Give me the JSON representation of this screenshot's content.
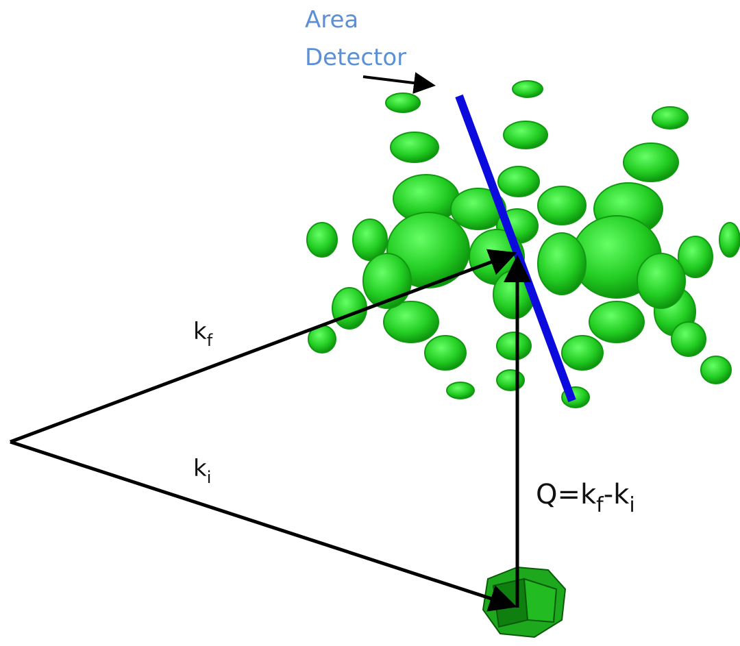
{
  "detector_label": {
    "line1": "Area",
    "line2": "Detector"
  },
  "kf_label": {
    "base": "k",
    "sub": "f"
  },
  "ki_label": {
    "base": "k",
    "sub": "i"
  },
  "q_label": {
    "a": "Q=k",
    "a_sub": "f",
    "b": "-k",
    "b_sub": "i"
  }
}
